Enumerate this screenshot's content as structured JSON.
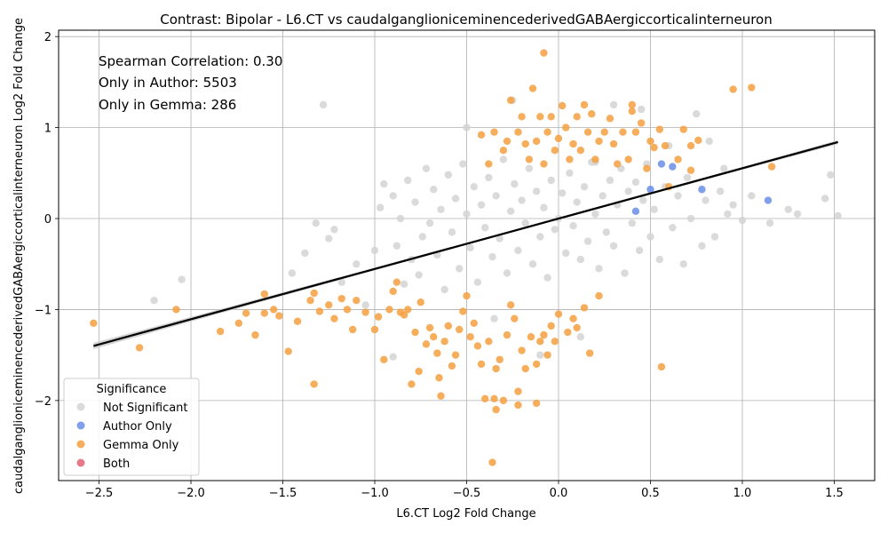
{
  "chart_data": {
    "type": "scatter",
    "title": "Contrast: Bipolar - L6.CT vs caudalganglioniceminencederivedGABAergiccorticalinterneuron",
    "xlabel": "L6.CT Log2 Fold Change",
    "ylabel": "caudalganglioniceminencederivedGABAergiccorticalinterneuron Log2 Fold Change",
    "xlim": [
      -2.72,
      1.72
    ],
    "ylim": [
      -2.88,
      2.07
    ],
    "xticks": [
      -2.5,
      -2.0,
      -1.5,
      -1.0,
      -0.5,
      0.0,
      0.5,
      1.0,
      1.5
    ],
    "xtick_labels": [
      "−2.5",
      "−2.0",
      "−1.5",
      "−1.0",
      "−0.5",
      "0.0",
      "0.5",
      "1.0",
      "1.5"
    ],
    "yticks": [
      -2,
      -1,
      0,
      1,
      2
    ],
    "ytick_labels": [
      "−2",
      "−1",
      "0",
      "1",
      "2"
    ],
    "grid": true,
    "annotations": [
      "Spearman Correlation: 0.30",
      "Only in Author: 5503",
      "Only in Gemma: 286"
    ],
    "legend": {
      "title": "Significance",
      "placement": "lower-left",
      "entries": [
        {
          "label": "Not Significant",
          "color": "#d3d3d3"
        },
        {
          "label": "Author Only",
          "color": "#6a8ee8"
        },
        {
          "label": "Gemma Only",
          "color": "#f6a03f"
        },
        {
          "label": "Both",
          "color": "#e06377"
        }
      ]
    },
    "regression_line": {
      "x": [
        -2.53,
        1.52
      ],
      "y": [
        -1.4,
        0.84
      ],
      "color": "#000000"
    },
    "series": [
      {
        "name": "Not Significant",
        "color": "#d3d3d3",
        "points": [
          [
            -2.2,
            -0.9
          ],
          [
            -2.05,
            -0.67
          ],
          [
            -1.45,
            -0.6
          ],
          [
            -1.38,
            -0.38
          ],
          [
            -1.32,
            -0.05
          ],
          [
            -1.28,
            1.25
          ],
          [
            -1.25,
            -0.22
          ],
          [
            -1.22,
            -0.12
          ],
          [
            -1.18,
            -0.7
          ],
          [
            -1.1,
            -0.5
          ],
          [
            -1.05,
            -0.95
          ],
          [
            -1.0,
            -0.35
          ],
          [
            -0.97,
            0.12
          ],
          [
            -0.95,
            0.38
          ],
          [
            -0.9,
            0.25
          ],
          [
            -0.88,
            -0.3
          ],
          [
            -0.86,
            0.0
          ],
          [
            -0.84,
            -0.72
          ],
          [
            -0.82,
            0.42
          ],
          [
            -0.8,
            -0.45
          ],
          [
            -0.78,
            0.18
          ],
          [
            -0.76,
            -0.62
          ],
          [
            -0.74,
            -0.2
          ],
          [
            -0.72,
            0.55
          ],
          [
            -0.7,
            -0.05
          ],
          [
            -0.68,
            0.32
          ],
          [
            -0.66,
            -0.4
          ],
          [
            -0.64,
            0.1
          ],
          [
            -0.62,
            -0.78
          ],
          [
            -0.6,
            0.48
          ],
          [
            -0.58,
            -0.15
          ],
          [
            -0.56,
            0.22
          ],
          [
            -0.54,
            -0.55
          ],
          [
            -0.52,
            0.6
          ],
          [
            -0.5,
            0.05
          ],
          [
            -0.48,
            -0.32
          ],
          [
            -0.46,
            0.35
          ],
          [
            -0.44,
            -0.7
          ],
          [
            -0.42,
            0.15
          ],
          [
            -0.4,
            -0.1
          ],
          [
            -0.38,
            0.45
          ],
          [
            -0.36,
            -0.42
          ],
          [
            -0.34,
            0.25
          ],
          [
            -0.32,
            -0.22
          ],
          [
            -0.3,
            0.65
          ],
          [
            -0.28,
            -0.6
          ],
          [
            -0.26,
            0.08
          ],
          [
            -0.24,
            0.38
          ],
          [
            -0.22,
            -0.35
          ],
          [
            -0.2,
            0.2
          ],
          [
            -0.18,
            -0.05
          ],
          [
            -0.16,
            0.55
          ],
          [
            -0.14,
            -0.5
          ],
          [
            -0.12,
            0.3
          ],
          [
            -0.1,
            -0.2
          ],
          [
            -0.08,
            0.12
          ],
          [
            -0.06,
            -0.65
          ],
          [
            -0.04,
            0.42
          ],
          [
            -0.02,
            -0.12
          ],
          [
            0.0,
            0.0
          ],
          [
            0.02,
            0.28
          ],
          [
            0.04,
            -0.38
          ],
          [
            0.06,
            0.5
          ],
          [
            0.08,
            -0.08
          ],
          [
            0.1,
            0.18
          ],
          [
            0.12,
            -0.45
          ],
          [
            0.14,
            0.35
          ],
          [
            0.16,
            -0.25
          ],
          [
            0.18,
            0.62
          ],
          [
            0.2,
            0.05
          ],
          [
            0.22,
            -0.55
          ],
          [
            0.24,
            0.25
          ],
          [
            0.26,
            -0.15
          ],
          [
            0.28,
            0.42
          ],
          [
            0.3,
            -0.3
          ],
          [
            0.32,
            0.15
          ],
          [
            0.34,
            0.55
          ],
          [
            0.36,
            -0.6
          ],
          [
            0.38,
            0.3
          ],
          [
            0.4,
            -0.05
          ],
          [
            0.42,
            0.4
          ],
          [
            0.44,
            -0.35
          ],
          [
            0.46,
            0.2
          ],
          [
            0.48,
            0.6
          ],
          [
            0.5,
            -0.2
          ],
          [
            0.52,
            0.1
          ],
          [
            0.55,
            -0.45
          ],
          [
            0.58,
            0.35
          ],
          [
            0.6,
            0.8
          ],
          [
            0.62,
            -0.1
          ],
          [
            0.65,
            0.25
          ],
          [
            0.68,
            -0.5
          ],
          [
            0.7,
            0.45
          ],
          [
            0.72,
            0.0
          ],
          [
            0.75,
            1.15
          ],
          [
            0.78,
            -0.3
          ],
          [
            0.8,
            0.2
          ],
          [
            0.82,
            0.85
          ],
          [
            0.85,
            -0.2
          ],
          [
            0.88,
            0.3
          ],
          [
            0.9,
            0.55
          ],
          [
            0.92,
            0.05
          ],
          [
            0.95,
            0.15
          ],
          [
            1.0,
            -0.02
          ],
          [
            1.05,
            0.25
          ],
          [
            1.15,
            -0.05
          ],
          [
            1.25,
            0.1
          ],
          [
            1.3,
            0.05
          ],
          [
            1.45,
            0.22
          ],
          [
            1.48,
            0.48
          ],
          [
            1.52,
            0.03
          ],
          [
            -0.9,
            -1.52
          ],
          [
            0.2,
            0.62
          ],
          [
            0.45,
            1.2
          ],
          [
            -0.35,
            -1.1
          ],
          [
            0.12,
            -1.3
          ],
          [
            -0.5,
            1.0
          ],
          [
            -0.25,
            1.3
          ],
          [
            0.3,
            1.25
          ],
          [
            -0.1,
            -1.5
          ]
        ]
      },
      {
        "name": "Author Only",
        "color": "#6a8ee8",
        "points": [
          [
            0.56,
            0.6
          ],
          [
            0.62,
            0.57
          ],
          [
            0.78,
            0.32
          ],
          [
            1.14,
            0.2
          ],
          [
            0.5,
            0.32
          ],
          [
            0.42,
            0.08
          ]
        ]
      },
      {
        "name": "Gemma Only",
        "color": "#f6a03f",
        "points": [
          [
            -2.53,
            -1.15
          ],
          [
            -2.28,
            -1.42
          ],
          [
            -2.08,
            -1.0
          ],
          [
            -1.84,
            -1.24
          ],
          [
            -1.74,
            -1.15
          ],
          [
            -1.7,
            -1.04
          ],
          [
            -1.65,
            -1.28
          ],
          [
            -1.6,
            -0.83
          ],
          [
            -1.6,
            -1.04
          ],
          [
            -1.55,
            -1.0
          ],
          [
            -1.52,
            -1.07
          ],
          [
            -1.47,
            -1.46
          ],
          [
            -1.42,
            -1.13
          ],
          [
            -1.35,
            -0.9
          ],
          [
            -1.33,
            -0.82
          ],
          [
            -1.33,
            -1.82
          ],
          [
            -1.3,
            -1.02
          ],
          [
            -1.25,
            -0.95
          ],
          [
            -1.22,
            -1.1
          ],
          [
            -1.18,
            -0.88
          ],
          [
            -1.15,
            -1.0
          ],
          [
            -1.12,
            -1.22
          ],
          [
            -1.1,
            -0.9
          ],
          [
            -1.05,
            -1.03
          ],
          [
            -1.0,
            -1.22
          ],
          [
            -0.98,
            -1.08
          ],
          [
            -0.95,
            -1.55
          ],
          [
            -0.92,
            -1.0
          ],
          [
            -0.9,
            -0.8
          ],
          [
            -0.88,
            -0.7
          ],
          [
            -0.86,
            -1.03
          ],
          [
            -0.84,
            -1.06
          ],
          [
            -0.82,
            -1.0
          ],
          [
            -0.8,
            -1.82
          ],
          [
            -0.78,
            -1.25
          ],
          [
            -0.76,
            -1.68
          ],
          [
            -0.75,
            -0.92
          ],
          [
            -0.72,
            -1.38
          ],
          [
            -0.7,
            -1.2
          ],
          [
            -0.68,
            -1.3
          ],
          [
            -0.66,
            -1.48
          ],
          [
            -0.65,
            -1.75
          ],
          [
            -0.64,
            -1.95
          ],
          [
            -0.62,
            -1.35
          ],
          [
            -0.6,
            -1.18
          ],
          [
            -0.58,
            -1.62
          ],
          [
            -0.56,
            -1.5
          ],
          [
            -0.54,
            -1.22
          ],
          [
            -0.52,
            -1.02
          ],
          [
            -0.5,
            -0.85
          ],
          [
            -0.48,
            -1.3
          ],
          [
            -0.46,
            -1.15
          ],
          [
            -0.44,
            -1.4
          ],
          [
            -0.42,
            -1.6
          ],
          [
            -0.4,
            -1.98
          ],
          [
            -0.38,
            -1.35
          ],
          [
            -0.36,
            -2.68
          ],
          [
            -0.35,
            -1.98
          ],
          [
            -0.34,
            -1.65
          ],
          [
            -0.34,
            -2.1
          ],
          [
            -0.32,
            -1.55
          ],
          [
            -0.3,
            -2.0
          ],
          [
            -0.28,
            -1.28
          ],
          [
            -0.26,
            -0.95
          ],
          [
            -0.24,
            -1.1
          ],
          [
            -0.22,
            -1.9
          ],
          [
            -0.22,
            -2.05
          ],
          [
            -0.2,
            -1.45
          ],
          [
            -0.18,
            -1.65
          ],
          [
            -0.15,
            -1.3
          ],
          [
            -0.12,
            -2.03
          ],
          [
            -0.12,
            -1.6
          ],
          [
            -0.1,
            -1.35
          ],
          [
            -0.08,
            -1.28
          ],
          [
            -0.06,
            -1.5
          ],
          [
            -0.04,
            -1.18
          ],
          [
            -0.02,
            -1.35
          ],
          [
            0.0,
            -1.05
          ],
          [
            0.05,
            -1.25
          ],
          [
            0.08,
            -1.1
          ],
          [
            0.1,
            -1.2
          ],
          [
            0.14,
            -0.98
          ],
          [
            0.17,
            -1.48
          ],
          [
            0.22,
            -0.85
          ],
          [
            0.56,
            -1.63
          ],
          [
            -0.42,
            0.92
          ],
          [
            -0.38,
            0.6
          ],
          [
            -0.35,
            0.95
          ],
          [
            -0.3,
            0.75
          ],
          [
            -0.28,
            0.85
          ],
          [
            -0.26,
            1.3
          ],
          [
            -0.22,
            0.95
          ],
          [
            -0.2,
            1.12
          ],
          [
            -0.18,
            0.82
          ],
          [
            -0.16,
            0.65
          ],
          [
            -0.14,
            1.43
          ],
          [
            -0.12,
            0.85
          ],
          [
            -0.1,
            1.12
          ],
          [
            -0.08,
            0.6
          ],
          [
            -0.08,
            1.82
          ],
          [
            -0.06,
            0.95
          ],
          [
            -0.04,
            1.12
          ],
          [
            -0.02,
            0.75
          ],
          [
            0.0,
            0.88
          ],
          [
            0.02,
            1.24
          ],
          [
            0.04,
            1.0
          ],
          [
            0.06,
            0.65
          ],
          [
            0.08,
            0.82
          ],
          [
            0.1,
            1.12
          ],
          [
            0.12,
            0.75
          ],
          [
            0.14,
            1.25
          ],
          [
            0.16,
            0.95
          ],
          [
            0.18,
            1.15
          ],
          [
            0.2,
            0.65
          ],
          [
            0.22,
            0.85
          ],
          [
            0.25,
            0.95
          ],
          [
            0.28,
            1.1
          ],
          [
            0.3,
            0.82
          ],
          [
            0.32,
            0.6
          ],
          [
            0.35,
            0.95
          ],
          [
            0.38,
            0.65
          ],
          [
            0.4,
            1.25
          ],
          [
            0.4,
            1.18
          ],
          [
            0.42,
            0.95
          ],
          [
            0.45,
            1.05
          ],
          [
            0.48,
            0.55
          ],
          [
            0.5,
            0.85
          ],
          [
            0.52,
            0.78
          ],
          [
            0.55,
            0.98
          ],
          [
            0.58,
            0.8
          ],
          [
            0.6,
            0.35
          ],
          [
            0.65,
            0.65
          ],
          [
            0.68,
            0.98
          ],
          [
            0.72,
            0.8
          ],
          [
            0.72,
            0.53
          ],
          [
            0.76,
            0.86
          ],
          [
            0.95,
            1.42
          ],
          [
            1.05,
            1.44
          ],
          [
            1.16,
            0.57
          ]
        ]
      }
    ]
  }
}
